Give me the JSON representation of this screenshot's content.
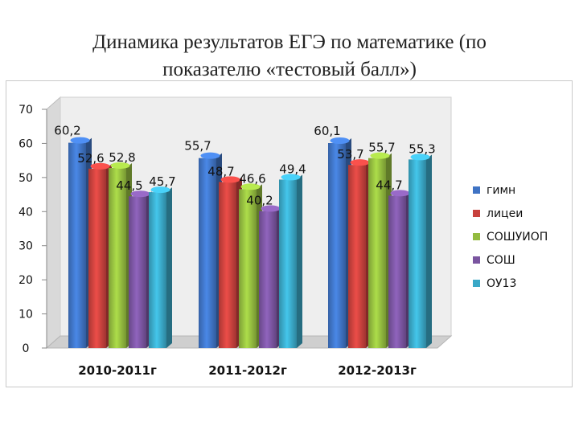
{
  "title": {
    "line1": "Динамика результатов ЕГЭ по математике (по",
    "line2": "показателю «тестовый балл»)"
  },
  "chart_data": {
    "type": "bar",
    "categories": [
      "2010-2011г",
      "2011-2012г",
      "2012-2013г"
    ],
    "series": [
      {
        "name": "гимн",
        "color": "#3f73c4",
        "values": [
          60.2,
          55.7,
          60.1
        ],
        "labels": [
          "60,2",
          "55,7",
          "60,1"
        ]
      },
      {
        "name": "лицеи",
        "color": "#c8413d",
        "values": [
          52.6,
          48.7,
          53.7
        ],
        "labels": [
          "52,6",
          "48,7",
          "53,7"
        ]
      },
      {
        "name": "СОШУИОП",
        "color": "#93bb3f",
        "values": [
          52.8,
          46.6,
          55.7
        ],
        "labels": [
          "52,8",
          "46,6",
          "55,7"
        ]
      },
      {
        "name": "СОШ",
        "color": "#7a55a0",
        "values": [
          44.5,
          40.2,
          44.7
        ],
        "labels": [
          "44,5",
          "40,2",
          "44,7"
        ]
      },
      {
        "name": "ОУ13",
        "color": "#3aa8c7",
        "values": [
          45.7,
          49.4,
          55.3
        ],
        "labels": [
          "45,7",
          "49,4",
          "55,3"
        ]
      }
    ],
    "yticks": [
      "0",
      "10",
      "20",
      "30",
      "40",
      "50",
      "60",
      "70"
    ],
    "ylim": [
      0,
      70
    ],
    "grid": false,
    "legend_position": "right"
  }
}
